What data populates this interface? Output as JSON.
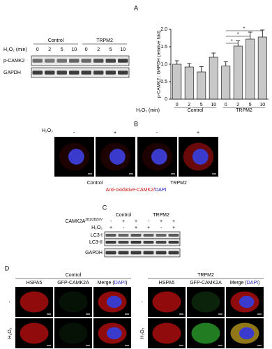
{
  "panels": {
    "a": {
      "label": "A",
      "blot": {
        "groups": [
          "Control",
          "TRPM2"
        ],
        "time_label": "H₂O₂ (min)",
        "times": [
          "0",
          "2",
          "5",
          "10",
          "0",
          "2",
          "5",
          "10"
        ],
        "rows": [
          "p-CAMK2",
          "GAPDH"
        ]
      }
    },
    "b": {
      "label": "B",
      "treatment": "H₂O₂",
      "signs": [
        "-",
        "+",
        "-",
        "+"
      ],
      "groups": [
        "Control",
        "TRPM2"
      ],
      "caption": {
        "stain": "Anti-oxidative-CAMK2/",
        "counterstain": "DAPI"
      }
    },
    "c": {
      "label": "C",
      "groups": [
        "Control",
        "TRPM2"
      ],
      "construct": {
        "name": "CAMK2A",
        "superscript": "281/282VV",
        "signs": [
          "-",
          "+",
          "+",
          "-",
          "+",
          "+"
        ]
      },
      "treatment": {
        "name": "H₂O₂",
        "signs": [
          "+",
          "-",
          "+",
          "+",
          "-",
          "+"
        ]
      },
      "rows": [
        "LC3-I",
        "LC3-II",
        "GAPDH"
      ]
    },
    "d": {
      "label": "D",
      "groups": [
        "Control",
        "TRPM2"
      ],
      "columns": {
        "hspa5": "HSPA5",
        "gfp": "GFP-CAMK2A",
        "merge_open": "Merge (",
        "merge_dapi": "DAPI",
        "merge_close": ")"
      },
      "rows": [
        "-",
        "H₂O₂"
      ]
    }
  },
  "chart_data": {
    "type": "bar",
    "y_label": "p-CAMK2 : GAPDH (relative fold)",
    "x_label": "H₂O₂ (min)",
    "categories": [
      "0",
      "2",
      "5",
      "10",
      "0",
      "2",
      "5",
      "10"
    ],
    "groups": [
      "Control",
      "TRPM2"
    ],
    "values": [
      1.0,
      0.92,
      0.78,
      1.2,
      0.95,
      1.52,
      1.72,
      1.78
    ],
    "errors": [
      0.1,
      0.1,
      0.15,
      0.12,
      0.12,
      0.15,
      0.2,
      0.2
    ],
    "color": "#c8c8c8",
    "ylim": [
      0,
      2.0
    ],
    "yticks": [
      0,
      0.5,
      {
        "value": 1,
        "label": "1.0"
      },
      1.5,
      {
        "value": 2,
        "label": "2.0"
      }
    ],
    "significance": [
      "*",
      "*",
      "*"
    ]
  }
}
